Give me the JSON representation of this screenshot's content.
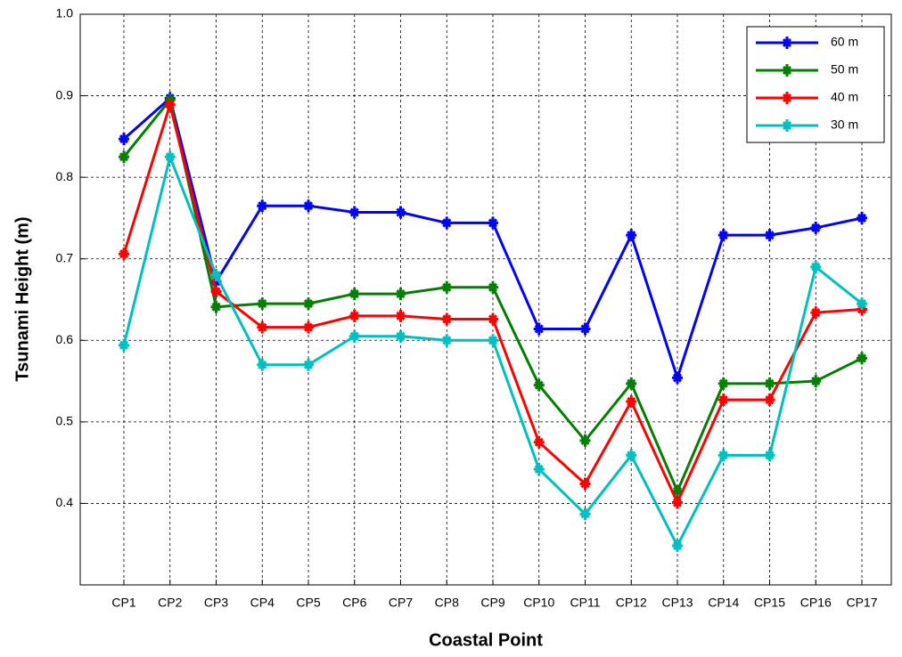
{
  "chart_data": {
    "type": "line",
    "xlabel": "Coastal Point",
    "ylabel": "Tsunami Height (m)",
    "categories": [
      "CP1",
      "CP2",
      "CP3",
      "CP4",
      "CP5",
      "CP6",
      "CP7",
      "CP8",
      "CP9",
      "CP10",
      "CP11",
      "CP12",
      "CP13",
      "CP14",
      "CP15",
      "CP16",
      "CP17"
    ],
    "series": [
      {
        "name": "60 m",
        "color": "#0000ff",
        "values": [
          0.847,
          0.897,
          0.672,
          0.765,
          0.765,
          0.757,
          0.757,
          0.744,
          0.744,
          0.614,
          0.614,
          0.729,
          0.554,
          0.729,
          0.729,
          0.738,
          0.75
        ]
      },
      {
        "name": "50 m",
        "color": "#007f00",
        "values": [
          0.825,
          0.895,
          0.641,
          0.645,
          0.645,
          0.657,
          0.657,
          0.665,
          0.665,
          0.545,
          0.477,
          0.547,
          0.415,
          0.547,
          0.547,
          0.55,
          0.578
        ]
      },
      {
        "name": "40 m",
        "color": "#ff0000",
        "values": [
          0.706,
          0.889,
          0.66,
          0.616,
          0.616,
          0.63,
          0.63,
          0.626,
          0.626,
          0.475,
          0.424,
          0.525,
          0.401,
          0.527,
          0.527,
          0.634,
          0.638
        ]
      },
      {
        "name": "30 m",
        "color": "#00bfbf",
        "values": [
          0.594,
          0.825,
          0.68,
          0.57,
          0.57,
          0.605,
          0.605,
          0.6,
          0.6,
          0.442,
          0.387,
          0.459,
          0.348,
          0.459,
          0.459,
          0.69,
          0.645
        ]
      }
    ],
    "ylim": [
      0.3,
      1.0
    ],
    "yticks": [
      0.4,
      0.5,
      0.6,
      0.7,
      0.8,
      0.9,
      {
        "value": 1.0,
        "label": "1.0"
      }
    ],
    "grid": true,
    "legend": "upper right"
  }
}
